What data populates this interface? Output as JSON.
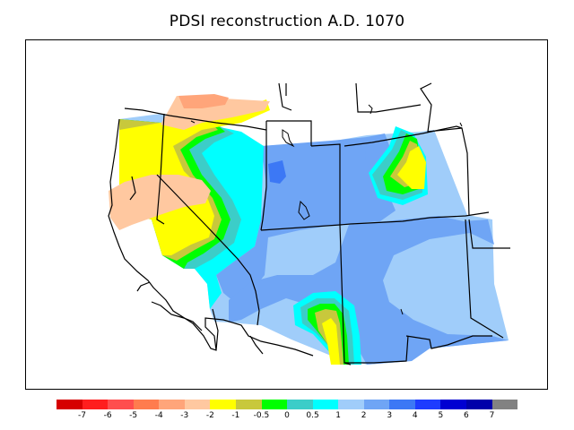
{
  "title": "PDSI reconstruction A.D. 1070",
  "legend": {
    "colors": [
      "#d60000",
      "#ff1e1e",
      "#ff4e4e",
      "#ff7c4e",
      "#ffa57a",
      "#ffc8a0",
      "#ffff00",
      "#c8c83c",
      "#00ff00",
      "#3ccdc8",
      "#00ffff",
      "#a0cdfa",
      "#6fa5f5",
      "#3c78f5",
      "#1e3cff",
      "#0000d2",
      "#0000aa",
      "#828282"
    ],
    "ticks": [
      "-7",
      "-6",
      "-5",
      "-4",
      "-3",
      "-2",
      "-1",
      "-0.5",
      "0",
      "0.5",
      "1",
      "2",
      "3",
      "4",
      "5",
      "6",
      "7"
    ]
  }
}
